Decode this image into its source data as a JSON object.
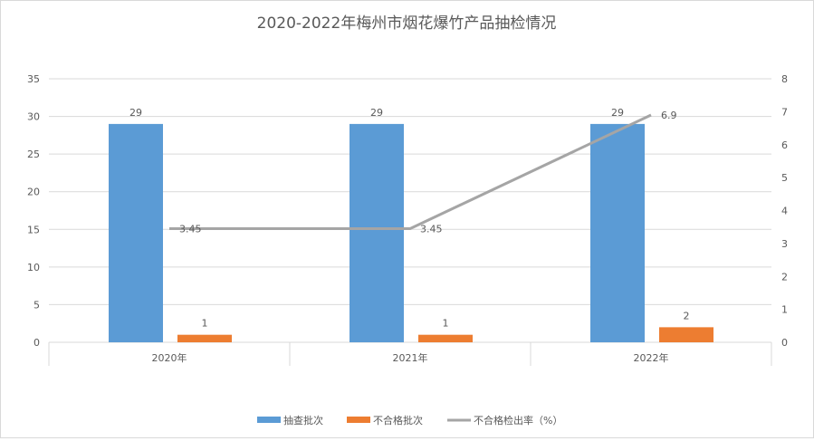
{
  "chart_data": {
    "type": "bar+line",
    "title": "2020-2022年梅州市烟花爆竹产品抽检情况",
    "categories": [
      "2020年",
      "2021年",
      "2022年"
    ],
    "series": [
      {
        "name": "抽查批次",
        "type": "bar",
        "axis": "left",
        "values": [
          29,
          29,
          29
        ],
        "color": "#5B9BD5"
      },
      {
        "name": "不合格批次",
        "type": "bar",
        "axis": "left",
        "values": [
          1,
          1,
          2
        ],
        "color": "#ED7D31"
      },
      {
        "name": "不合格检出率（%）",
        "type": "line",
        "axis": "right",
        "values": [
          3.45,
          3.45,
          6.9
        ],
        "color": "#A5A5A5"
      }
    ],
    "y_left": {
      "range": [
        0,
        35
      ],
      "ticks": [
        0,
        5,
        10,
        15,
        20,
        25,
        30,
        35
      ]
    },
    "y_right": {
      "range": [
        0,
        8
      ],
      "ticks": [
        0,
        1,
        2,
        3,
        4,
        5,
        6,
        7,
        8
      ]
    },
    "grid": true,
    "legend": "bottom"
  }
}
